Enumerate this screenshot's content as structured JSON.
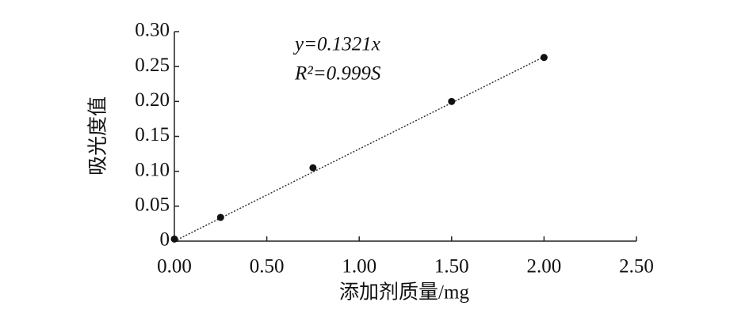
{
  "chart_data": {
    "type": "scatter",
    "x_label": "添加剂质量/mg",
    "y_label": "吸光度值",
    "equation": "y=0.1321x",
    "r_squared": "R²=0.999S",
    "x": [
      0,
      0.25,
      0.75,
      1.5,
      2.0
    ],
    "values": [
      0.003,
      0.034,
      0.105,
      0.2,
      0.263
    ],
    "color": "#111111",
    "trendline": {
      "x": [
        0,
        2.0
      ],
      "values": [
        0,
        0.264
      ],
      "color": "#333333"
    },
    "xlim": [
      0,
      2.5
    ],
    "xticks": [
      {
        "value": 0,
        "label": "0.00"
      },
      {
        "value": 0.5,
        "label": "0.50"
      },
      {
        "value": 1.0,
        "label": "1.00"
      },
      {
        "value": 1.5,
        "label": "1.50"
      },
      {
        "value": 2.0,
        "label": "2.00"
      },
      {
        "value": 2.5,
        "label": "2.50"
      }
    ],
    "ylim": [
      0,
      0.3
    ],
    "yticks": [
      0,
      0.05,
      {
        "value": 0.1,
        "label": "0.10"
      },
      0.15,
      {
        "value": 0.2,
        "label": "0.20"
      },
      0.25,
      {
        "value": 0.3,
        "label": "0.30"
      }
    ]
  }
}
